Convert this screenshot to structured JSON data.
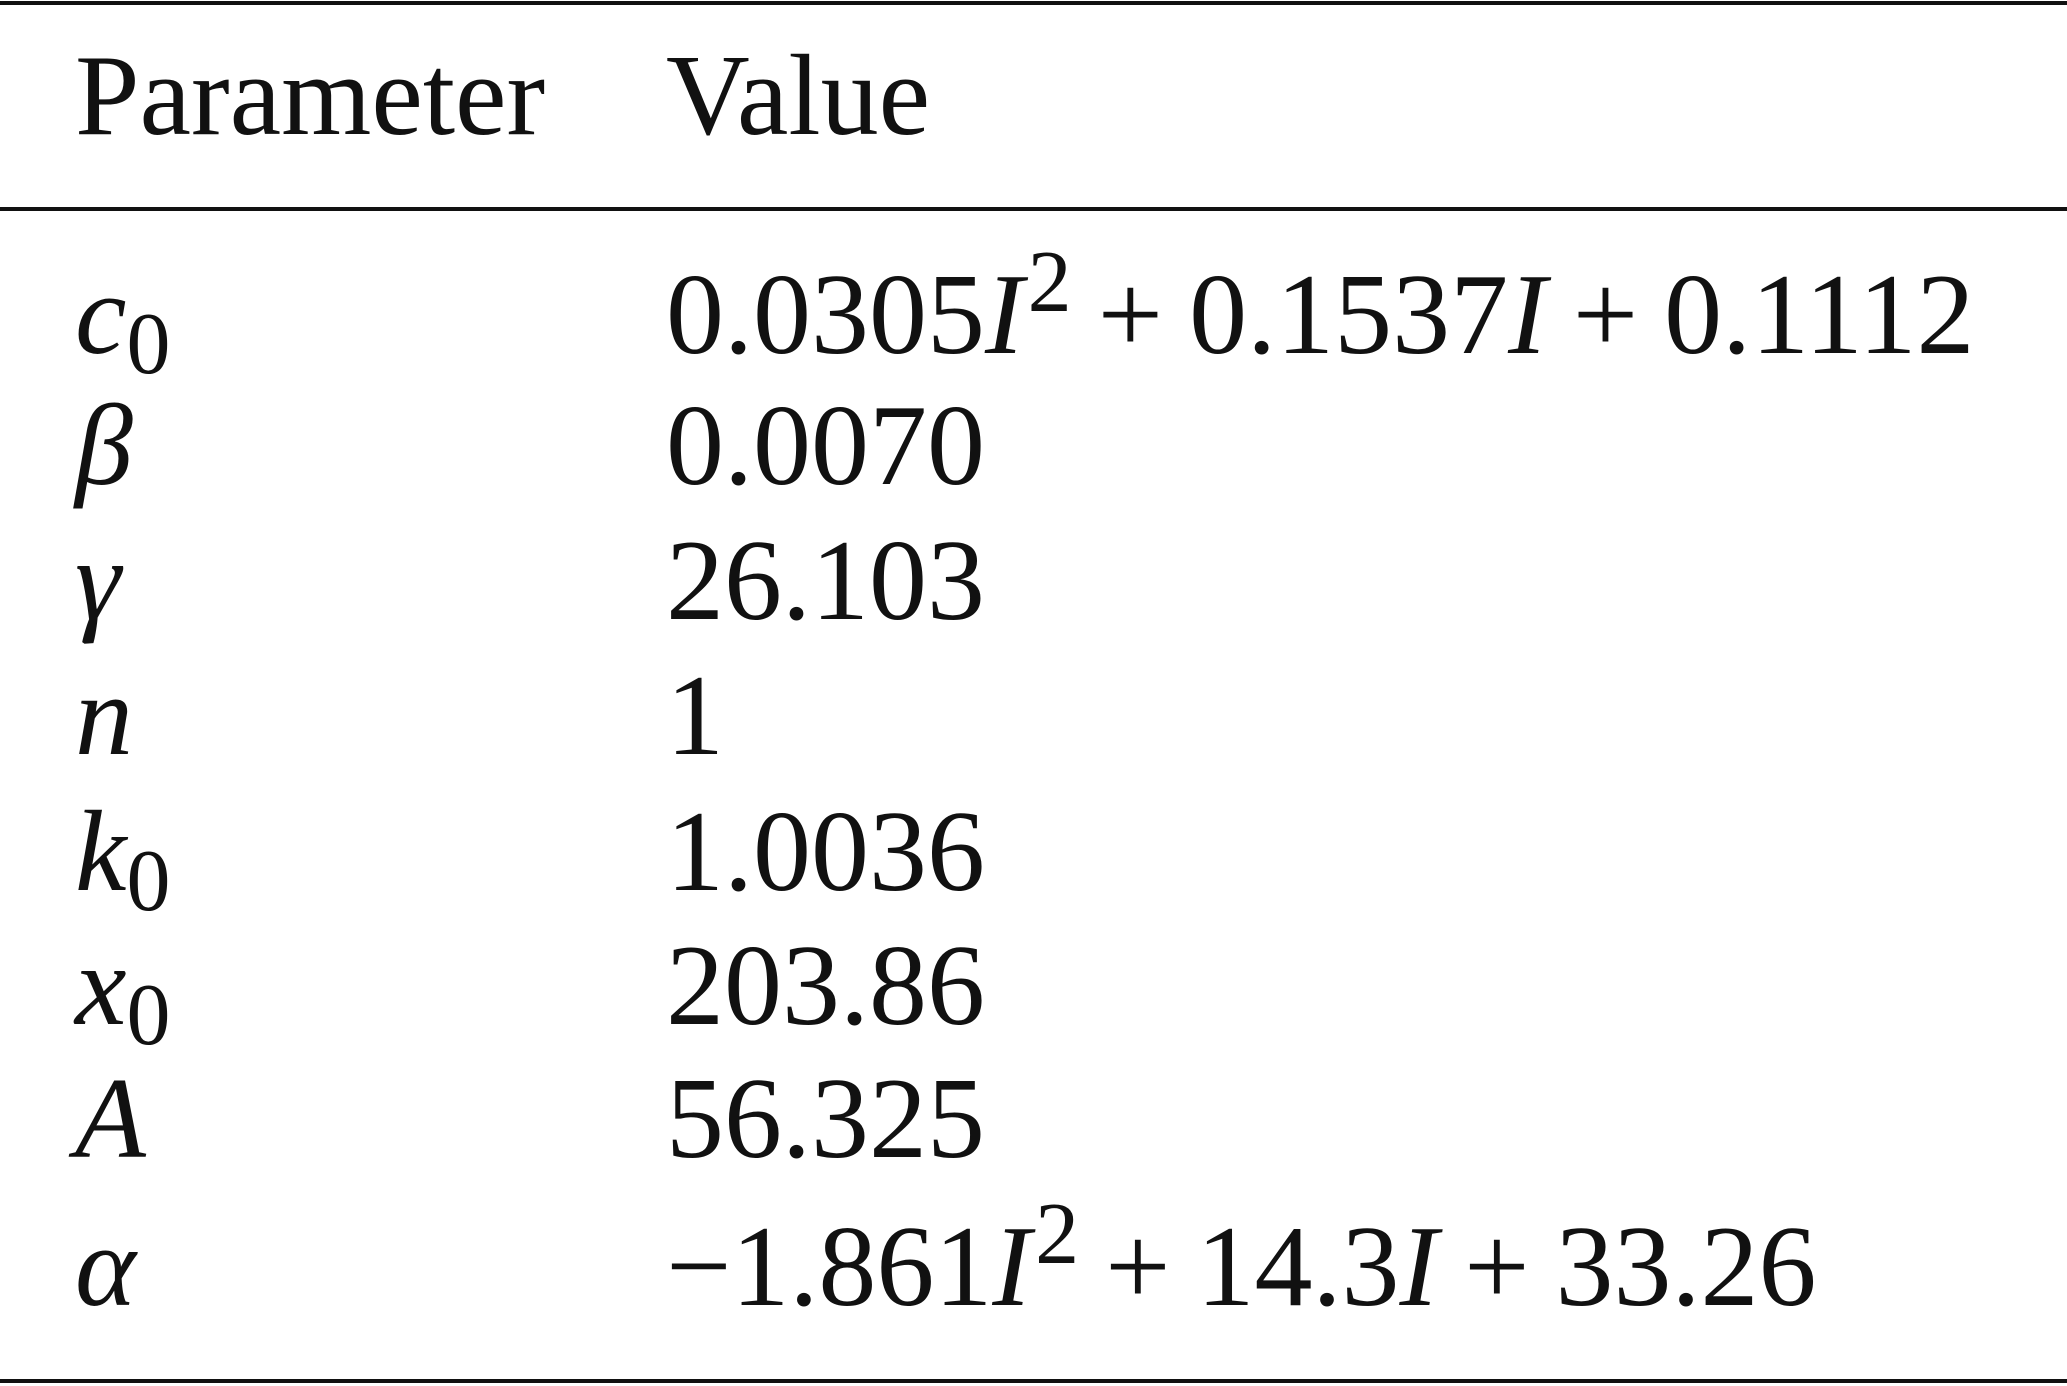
{
  "table": {
    "header": [
      "Parameter",
      "Value"
    ],
    "rows": [
      {
        "parameter": [
          "c",
          "0"
        ],
        "value": [
          "0.0305",
          "I",
          "2",
          "+",
          "0.1537",
          "I",
          "+",
          "0.1112"
        ]
      },
      {
        "parameter": [
          "β"
        ],
        "value": [
          "0.0070"
        ]
      },
      {
        "parameter": [
          "γ"
        ],
        "value": [
          "26.103"
        ]
      },
      {
        "parameter": [
          "n"
        ],
        "value": [
          "1"
        ]
      },
      {
        "parameter": [
          "k",
          "0"
        ],
        "value": [
          "1.0036"
        ]
      },
      {
        "parameter": [
          "x",
          "0"
        ],
        "value": [
          "203.86"
        ]
      },
      {
        "parameter": [
          "A"
        ],
        "value": [
          "56.325"
        ]
      },
      {
        "parameter": [
          "α"
        ],
        "value": [
          "−1.861",
          "I",
          "2",
          "+",
          "14.3",
          "I",
          "+",
          "33.26"
        ]
      }
    ]
  }
}
